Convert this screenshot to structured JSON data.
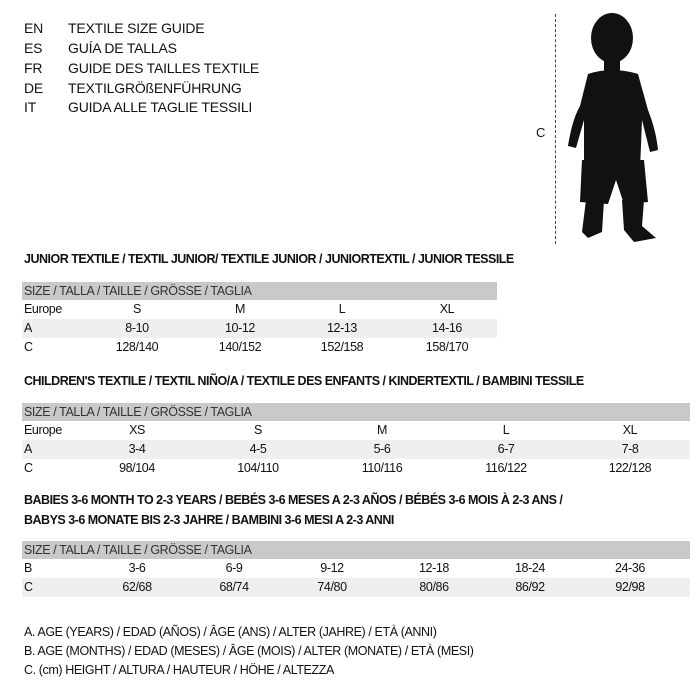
{
  "languages": [
    {
      "code": "EN",
      "label": "TEXTILE SIZE GUIDE"
    },
    {
      "code": "ES",
      "label": "GUÍA DE TALLAS"
    },
    {
      "code": "FR",
      "label": "GUIDE DES TAILLES TEXTILE"
    },
    {
      "code": "DE",
      "label": "TEXTILGRÖßENFÜHRUNG"
    },
    {
      "code": "IT",
      "label": "GUIDA ALLE TAGLIE TESSILI"
    }
  ],
  "figure": {
    "height_label": "C",
    "icon": "baby-silhouette-icon"
  },
  "junior": {
    "title": "JUNIOR TEXTILE / TEXTIL JUNIOR/ TEXTILE JUNIOR / JUNIORTEXTIL / JUNIOR TESSILE",
    "header": "SIZE / TALLA / TAILLE / GRÖSSE / TAGLIA",
    "rows": [
      {
        "label": "Europe",
        "cells": [
          "S",
          "M",
          "L",
          "XL"
        ]
      },
      {
        "label": "A",
        "cells": [
          "8-10",
          "10-12",
          "12-13",
          "14-16"
        ]
      },
      {
        "label": "C",
        "cells": [
          "128/140",
          "140/152",
          "152/158",
          "158/170"
        ]
      }
    ]
  },
  "children": {
    "title": "CHILDREN'S TEXTILE / TEXTIL NIÑO/A / TEXTILE DES ENFANTS / KINDERTEXTIL / BAMBINI TESSILE",
    "header": "SIZE / TALLA / TAILLE / GRÖSSE / TAGLIA",
    "rows": [
      {
        "label": "Europe",
        "cells": [
          "XS",
          "S",
          "M",
          "L",
          "XL"
        ]
      },
      {
        "label": "A",
        "cells": [
          "3-4",
          "4-5",
          "5-6",
          "6-7",
          "7-8"
        ]
      },
      {
        "label": "C",
        "cells": [
          "98/104",
          "104/110",
          "110/116",
          "116/122",
          "122/128"
        ]
      }
    ]
  },
  "babies": {
    "title_line1": "BABIES 3-6 MONTH TO 2-3 YEARS / BEBÉS 3-6 MESES A 2-3 AÑOS / BÉBÉS 3-6 MOIS À 2-3 ANS /",
    "title_line2": "BABYS 3-6 MONATE BIS 2-3 JAHRE / BAMBINI 3-6 MESI A 2-3 ANNI",
    "header": "SIZE / TALLA / TAILLE / GRÖSSE / TAGLIA",
    "rows": [
      {
        "label": "B",
        "cells": [
          "3-6",
          "6-9",
          "9-12",
          "12-18",
          "18-24",
          "24-36"
        ]
      },
      {
        "label": "C",
        "cells": [
          "62/68",
          "68/74",
          "74/80",
          "80/86",
          "86/92",
          "92/98"
        ]
      }
    ]
  },
  "legend": [
    "A. AGE (YEARS) / EDAD (AÑOS) / ÂGE (ANS) / ALTER (JAHRE) / ETÀ (ANNI)",
    "B. AGE (MONTHS) / EDAD (MESES) / ÂGE (MOIS) / ALTER (MONATE) / ETÀ (MESI)",
    "C. (cm) HEIGHT / ALTURA / HAUTEUR / HÖHE / ALTEZZA"
  ],
  "colors": {
    "header_bg": "#c9c9c9",
    "alt_row_bg": "#efefef"
  }
}
